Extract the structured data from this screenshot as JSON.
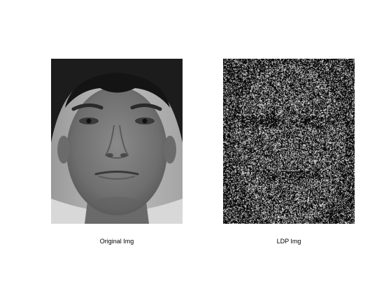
{
  "figure": {
    "panels": [
      {
        "caption": "Original Img"
      },
      {
        "caption": "LDP Img"
      }
    ],
    "colors": {
      "background": "#ffffff",
      "skin": "#7d7d7d",
      "hair": "#1a1a1a",
      "ldp_background": "#050505",
      "ldp_noise": "#e6e6e6"
    }
  }
}
